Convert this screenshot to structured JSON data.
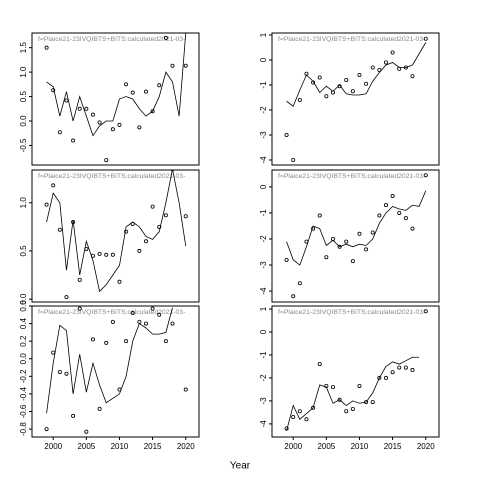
{
  "x_label": "Year",
  "chart_data": [
    {
      "type": "line",
      "title": "f=Plaice21-23IVQIBTS+BITS;calculated2021-03-",
      "x": [
        1999,
        2000,
        2001,
        2002,
        2003,
        2004,
        2005,
        2006,
        2007,
        2008,
        2009,
        2010,
        2011,
        2012,
        2013,
        2014,
        2015,
        2016,
        2017,
        2018,
        2019,
        2020
      ],
      "series": [
        {
          "marker": "circle",
          "color": "#000000",
          "values": [
            1.5,
            0.63,
            -0.23,
            0.42,
            -0.4,
            0.25,
            0.25,
            0.13,
            -0.03,
            -0.8,
            -0.17,
            -0.08,
            0.75,
            0.58,
            -0.13,
            0.6,
            0.2,
            0.73,
            1.7,
            1.13,
            null,
            1.13
          ]
        },
        {
          "marker": "none",
          "color": "#000000",
          "values": [
            0.8,
            0.7,
            0.1,
            0.6,
            0.0,
            0.5,
            0.1,
            -0.3,
            -0.1,
            0.0,
            0.0,
            0.45,
            0.5,
            0.45,
            0.25,
            0.1,
            0.2,
            0.5,
            1.0,
            0.8,
            0.1,
            1.8
          ]
        }
      ],
      "xlim": [
        1996.8,
        2022
      ],
      "ylim": [
        -0.9,
        1.8
      ],
      "yticks": [
        {
          "value": -0.5,
          "label": "-0.5"
        },
        {
          "value": 0,
          "label": "0.0"
        },
        {
          "value": 0.5,
          "label": "0.5"
        },
        {
          "value": 1,
          "label": "1.0"
        },
        {
          "value": 1.5,
          "label": "1.5"
        }
      ]
    },
    {
      "type": "line",
      "title": "f=Plaice21-23IVQIBTS+BITS;calculated2021-03-",
      "x": [
        1999,
        2000,
        2001,
        2002,
        2003,
        2004,
        2005,
        2006,
        2007,
        2008,
        2009,
        2010,
        2011,
        2012,
        2013,
        2014,
        2015,
        2016,
        2017,
        2018,
        2019,
        2020
      ],
      "series": [
        {
          "marker": "circle",
          "color": "#000000",
          "values": [
            -3.0,
            -4.0,
            -1.6,
            -0.55,
            -0.9,
            -0.7,
            -1.45,
            -1.3,
            -1.05,
            -0.8,
            -1.25,
            -0.6,
            -0.95,
            -0.3,
            -0.4,
            -0.1,
            0.3,
            -0.35,
            -0.3,
            -0.65,
            null,
            0.85
          ]
        },
        {
          "marker": "none",
          "color": "#000000",
          "values": [
            -1.65,
            -1.85,
            -1.2,
            -0.6,
            -0.85,
            -1.3,
            -1.05,
            -1.25,
            -1.0,
            -1.35,
            -1.4,
            -1.4,
            -1.35,
            -0.85,
            -0.5,
            -0.2,
            -0.1,
            -0.3,
            -0.3,
            -0.2,
            0.25,
            0.7
          ]
        }
      ],
      "xlim": [
        1996.8,
        2022
      ],
      "ylim": [
        -4.2,
        1.08
      ],
      "yticks": [
        -4,
        -3,
        -2,
        -1,
        0,
        1
      ]
    },
    {
      "type": "line",
      "title": "f=Plaice21-23IVQIBTS+BITS;calculated2021-03-",
      "x": [
        1999,
        2000,
        2001,
        2002,
        2003,
        2004,
        2005,
        2006,
        2007,
        2008,
        2009,
        2010,
        2011,
        2012,
        2013,
        2014,
        2015,
        2016,
        2017,
        2018,
        2019,
        2020
      ],
      "series": [
        {
          "marker": "circle",
          "color": "#000000",
          "values": [
            0.98,
            1.18,
            0.72,
            0.02,
            0.8,
            0.2,
            0.52,
            0.45,
            0.47,
            0.46,
            0.46,
            0.18,
            0.7,
            0.78,
            0.5,
            0.6,
            0.96,
            0.75,
            0.87,
            1.35,
            null,
            0.86
          ]
        },
        {
          "marker": "none",
          "color": "#000000",
          "values": [
            0.8,
            1.1,
            1.0,
            0.3,
            0.82,
            0.25,
            0.6,
            0.4,
            0.08,
            0.15,
            0.25,
            0.35,
            0.75,
            0.8,
            0.75,
            0.65,
            0.62,
            0.7,
            1.0,
            1.35,
            1.0,
            0.55
          ]
        }
      ],
      "xlim": [
        1996.8,
        2022
      ],
      "ylim": [
        -0.03,
        1.34
      ],
      "yticks": [
        {
          "value": 0,
          "label": "0.0"
        },
        {
          "value": 0.5,
          "label": "0.5"
        },
        {
          "value": 1,
          "label": "1.0"
        }
      ]
    },
    {
      "type": "line",
      "title": "f=Plaice21-23IVQIBTS+BITS;calculated2021-03-",
      "x": [
        1999,
        2000,
        2001,
        2002,
        2003,
        2004,
        2005,
        2006,
        2007,
        2008,
        2009,
        2010,
        2011,
        2012,
        2013,
        2014,
        2015,
        2016,
        2017,
        2018,
        2019,
        2020
      ],
      "series": [
        {
          "marker": "circle",
          "color": "#000000",
          "values": [
            -2.8,
            -4.2,
            -3.7,
            -2.1,
            -1.6,
            -1.1,
            -2.7,
            -2.0,
            -2.3,
            -2.1,
            -2.85,
            -1.8,
            -2.4,
            -1.75,
            -1.1,
            -0.7,
            -0.35,
            -1.0,
            -1.2,
            -1.6,
            null,
            0.45
          ]
        },
        {
          "marker": "none",
          "color": "#000000",
          "values": [
            -2.1,
            -2.8,
            -3.0,
            -2.3,
            -1.5,
            -1.6,
            -2.25,
            -2.05,
            -2.3,
            -2.2,
            -2.3,
            -2.2,
            -2.25,
            -2.0,
            -1.4,
            -1.0,
            -0.75,
            -0.85,
            -0.9,
            -0.7,
            -0.75,
            -0.15
          ]
        }
      ],
      "xlim": [
        1996.8,
        2022
      ],
      "ylim": [
        -4.42,
        0.65
      ],
      "yticks": [
        -4,
        -3,
        -2,
        -1,
        0
      ]
    },
    {
      "type": "line",
      "title": "f=Plaice21-23IVQIBTS+BITS;calculated2021-03-",
      "x": [
        1999,
        2000,
        2001,
        2002,
        2003,
        2004,
        2005,
        2006,
        2007,
        2008,
        2009,
        2010,
        2011,
        2012,
        2013,
        2014,
        2015,
        2016,
        2017,
        2018,
        2019,
        2020
      ],
      "series": [
        {
          "marker": "circle",
          "color": "#000000",
          "values": [
            -0.8,
            0.07,
            -0.15,
            -0.17,
            -0.65,
            0.57,
            -0.83,
            0.22,
            -0.57,
            0.18,
            0.42,
            -0.35,
            0.2,
            0.52,
            0.42,
            0.4,
            0.57,
            0.5,
            0.2,
            0.4,
            null,
            -0.35
          ]
        },
        {
          "marker": "none",
          "color": "#000000",
          "values": [
            -0.62,
            -0.05,
            0.38,
            0.32,
            -0.4,
            0.05,
            -0.38,
            -0.05,
            -0.3,
            -0.5,
            -0.45,
            -0.4,
            -0.2,
            0.2,
            0.4,
            0.35,
            0.28,
            0.28,
            0.3,
            0.58,
            null,
            null
          ]
        }
      ],
      "xlim": [
        1996.8,
        2022
      ],
      "ylim": [
        -0.89,
        0.6
      ],
      "xticks": [
        2000,
        2005,
        2010,
        2015,
        2020
      ],
      "yticks": [
        {
          "value": -0.8,
          "label": "-0.8"
        },
        {
          "value": -0.6,
          "label": "-0.6"
        },
        {
          "value": -0.4,
          "label": "-0.4"
        },
        {
          "value": -0.2,
          "label": "-0.2"
        },
        {
          "value": 0,
          "label": "0.0"
        },
        {
          "value": 0.2,
          "label": "0.2"
        },
        {
          "value": 0.4,
          "label": "0.4"
        },
        {
          "value": 0.6,
          "label": "0.6"
        }
      ]
    },
    {
      "type": "line",
      "title": "f=Plaice21-23IVQIBTS+BITS;calculated2021-03-",
      "x": [
        1999,
        2000,
        2001,
        2002,
        2003,
        2004,
        2005,
        2006,
        2007,
        2008,
        2009,
        2010,
        2011,
        2012,
        2013,
        2014,
        2015,
        2016,
        2017,
        2018,
        2019,
        2020
      ],
      "series": [
        {
          "marker": "circle",
          "color": "#000000",
          "values": [
            -4.2,
            -3.7,
            -3.45,
            -3.8,
            -3.3,
            -1.4,
            -2.35,
            -2.4,
            -2.95,
            -3.45,
            -3.35,
            -2.35,
            -3.05,
            -3.05,
            -2.0,
            -2.0,
            -1.75,
            -1.55,
            -1.55,
            -1.65,
            null,
            0.9
          ]
        },
        {
          "marker": "none",
          "color": "#000000",
          "values": [
            -4.3,
            -3.2,
            -3.8,
            -3.55,
            -3.3,
            -2.3,
            -2.4,
            -3.1,
            -2.95,
            -3.2,
            -3.0,
            -3.1,
            -3.05,
            -2.65,
            -2.0,
            -1.5,
            -1.3,
            -1.4,
            -1.25,
            -1.1,
            -1.1,
            null
          ]
        }
      ],
      "xlim": [
        1996.8,
        2022
      ],
      "ylim": [
        -4.57,
        1.13
      ],
      "xticks": [
        2000,
        2005,
        2010,
        2015,
        2020
      ],
      "yticks": [
        -4,
        -3,
        -2,
        -1,
        0,
        1
      ]
    }
  ]
}
